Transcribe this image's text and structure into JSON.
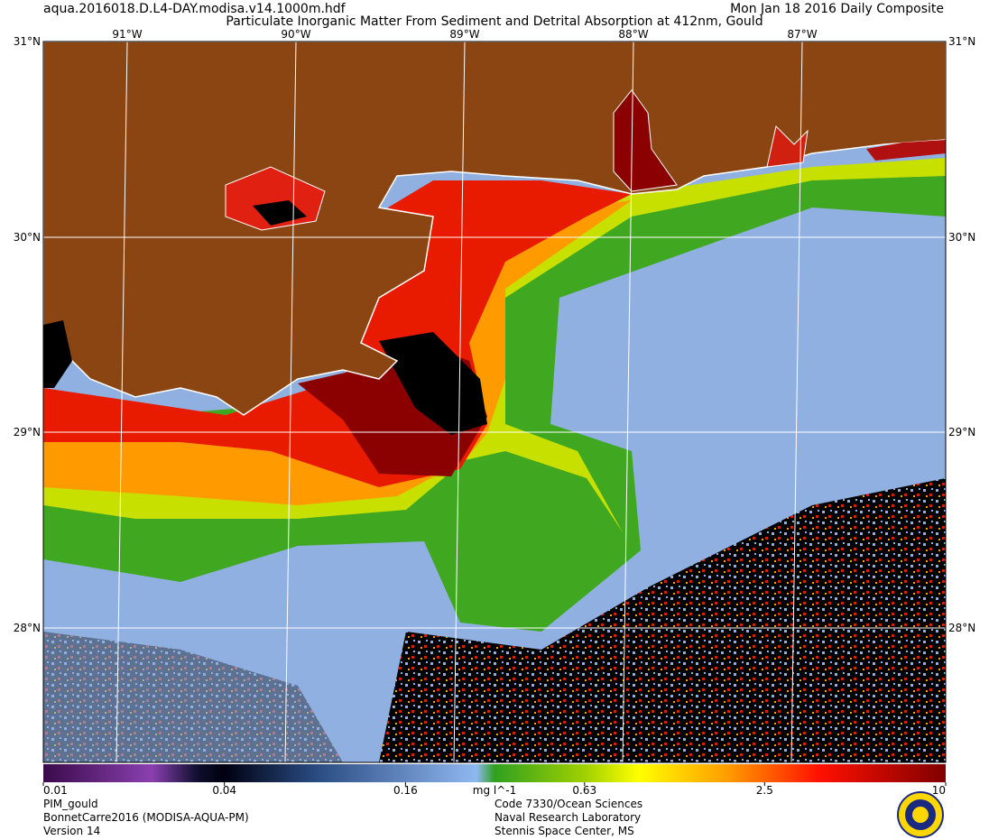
{
  "header": {
    "filename": "aqua.2016018.D.L4-DAY.modisa.v14.1000m.hdf",
    "date": "Mon Jan 18 2016 Daily Composite",
    "title": "Particulate Inorganic Matter From Sediment and Detrital Absorption at 412nm, Gould"
  },
  "map": {
    "longitude_labels": [
      "91°W",
      "90°W",
      "89°W",
      "88°W",
      "87°W"
    ],
    "latitude_labels": [
      "31°N",
      "30°N",
      "29°N",
      "28°N"
    ]
  },
  "colorbar": {
    "unit": "mg l^-1",
    "scale": "log",
    "range": [
      0.01,
      10
    ],
    "ticks": [
      0.01,
      0.04,
      0.16,
      0.63,
      2.5,
      10
    ]
  },
  "footer": {
    "left": [
      "PIM_gould",
      "BonnetCarre2016 (MODISA-AQUA-PM)",
      "Version 14"
    ],
    "center": [
      "Code 7330/Ocean Sciences",
      "Naval Research Laboratory",
      "Stennis Space Center, MS"
    ]
  }
}
